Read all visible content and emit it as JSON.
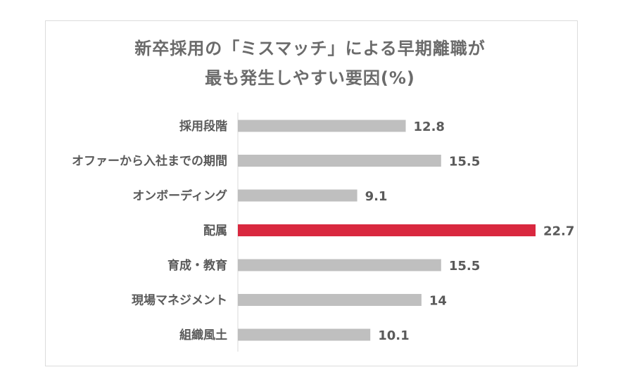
{
  "chart_data": {
    "type": "bar",
    "orientation": "horizontal",
    "title_lines": [
      "新卒採用の「ミスマッチ」による早期離職が",
      "最も発生しやすい要因(%)"
    ],
    "categories": [
      "採用段階",
      "オファーから入社までの期間",
      "オンボーディング",
      "配属",
      "育成・教育",
      "現場マネジメント",
      "組織風土"
    ],
    "values": [
      12.8,
      15.5,
      9.1,
      22.7,
      15.5,
      14,
      10.1
    ],
    "value_labels": [
      "12.8",
      "15.5",
      "9.1",
      "22.7",
      "15.5",
      "14",
      "10.1"
    ],
    "xlim": [
      0,
      22.7
    ],
    "highlight_index": 3,
    "colors": {
      "bar": "#bfbfbf",
      "highlight": "#d9283f",
      "text": "#5a5a5a",
      "title": "#6b6b6b",
      "axis": "#d9d9d9"
    },
    "grid": false,
    "legend": "none"
  }
}
